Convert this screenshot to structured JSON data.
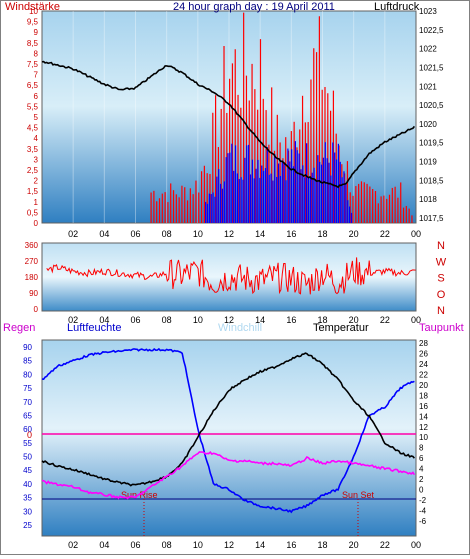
{
  "panels": {
    "top": {
      "left_title": "Windstärke",
      "center_title": "24 hour graph day : 19 April 2011",
      "right_title": "Luftdruck",
      "left_ticks": [
        "10",
        "9,5",
        "9",
        "8,5",
        "8",
        "7,5",
        "7",
        "6,5",
        "6",
        "5,5",
        "5",
        "4,5",
        "4",
        "3,5",
        "3",
        "2,5",
        "2",
        "1,5",
        "1",
        "0,5",
        "0"
      ],
      "right_ticks": [
        "1023",
        "1022,5",
        "1022",
        "1021,5",
        "1021",
        "1020,5",
        "1020",
        "1019,5",
        "1019",
        "1018,5",
        "1018",
        "1017,5"
      ],
      "x_ticks": [
        "02",
        "04",
        "06",
        "08",
        "10",
        "12",
        "14",
        "16",
        "18",
        "20",
        "22",
        "00"
      ]
    },
    "middle": {
      "left_ticks": [
        "360",
        "270",
        "180",
        "90",
        "0"
      ],
      "right_ticks": [
        "N",
        "W",
        "S",
        "O",
        "N"
      ],
      "x_ticks": [
        "02",
        "04",
        "06",
        "08",
        "10",
        "12",
        "14",
        "16",
        "18",
        "20",
        "22",
        "00"
      ]
    },
    "bottom": {
      "legend": {
        "regen": "Regen",
        "luftfeuchte": "Luftfeuchte",
        "windchill": "Windchill",
        "temperatur": "Temperatur",
        "taupunkt": "Taupunkt"
      },
      "left_ticks": [
        "90",
        "85",
        "80",
        "75",
        "70",
        "65",
        "60",
        "55",
        "50",
        "45",
        "40",
        "35",
        "30",
        "25"
      ],
      "rain_tick": "0",
      "right_ticks": [
        "28",
        "26",
        "24",
        "22",
        "20",
        "18",
        "16",
        "14",
        "12",
        "10",
        "8",
        "6",
        "4",
        "2",
        "0",
        "-2",
        "-4",
        "-6"
      ],
      "x_ticks": [
        "02",
        "04",
        "06",
        "08",
        "10",
        "12",
        "14",
        "16",
        "18",
        "20",
        "22",
        "00"
      ],
      "sun_rise": "Sun Rise",
      "sun_set": "Sun Set"
    }
  },
  "colors": {
    "wind_speed": "#ff0000",
    "wind_gust": "#0000ff",
    "pressure": "#000000",
    "humidity": "#0000ff",
    "temperature": "#000000",
    "dewpoint": "#ff00ff",
    "windchill": "#add8e6",
    "rain_line": "#ff00aa"
  },
  "chart_data": [
    {
      "type": "line",
      "title": "24 hour graph day : 19 April 2011",
      "xlabel": "",
      "ylabel_left": "Windstärke",
      "ylabel_right": "Luftdruck",
      "x_range_hours": [
        0,
        24
      ],
      "ylim_left": [
        0,
        10
      ],
      "ylim_right": [
        1017.5,
        1023
      ],
      "series": [
        {
          "name": "Luftdruck",
          "axis": "right",
          "x": [
            0,
            1,
            2,
            3,
            4,
            5,
            6,
            7,
            8,
            9,
            10,
            11,
            12,
            13,
            14,
            15,
            16,
            17,
            18,
            19,
            19.5,
            20,
            21,
            22,
            23,
            24
          ],
          "values": [
            1021.7,
            1021.6,
            1021.5,
            1021.3,
            1021.1,
            1020.95,
            1021.0,
            1021.3,
            1021.6,
            1021.4,
            1021.1,
            1020.9,
            1020.6,
            1020.1,
            1019.6,
            1019.2,
            1018.9,
            1018.7,
            1018.55,
            1018.45,
            1018.5,
            1018.8,
            1019.3,
            1019.6,
            1019.8,
            1020.0
          ]
        },
        {
          "name": "Windstärke",
          "axis": "left",
          "x": [
            0,
            5,
            6,
            7,
            8,
            9,
            10,
            11,
            12,
            13,
            14,
            15,
            16,
            17,
            18,
            19,
            20,
            21,
            22,
            23,
            24
          ],
          "values": [
            0,
            0,
            0,
            2,
            2,
            2,
            2.5,
            5.5,
            10,
            10,
            10,
            5.5,
            5,
            10,
            10,
            5.5,
            2,
            2,
            2,
            2,
            0
          ]
        },
        {
          "name": "Windstärke (mean)",
          "axis": "left",
          "x": [
            10,
            11,
            12,
            13,
            14,
            15,
            16,
            17,
            18,
            19,
            20
          ],
          "values": [
            0,
            2,
            4,
            4,
            4,
            4,
            4,
            4,
            4,
            4,
            0
          ]
        }
      ]
    },
    {
      "type": "line",
      "xlabel": "",
      "ylabel_left": "",
      "x_range_hours": [
        0,
        24
      ],
      "ylim": [
        0,
        360
      ],
      "series": [
        {
          "name": "Windrichtung",
          "x": [
            0,
            1,
            2,
            3,
            4,
            5,
            6,
            7,
            8,
            9,
            10,
            11,
            12,
            13,
            14,
            15,
            16,
            17,
            18,
            19,
            20,
            21,
            22,
            23,
            24
          ],
          "values": [
            210,
            230,
            210,
            200,
            210,
            200,
            190,
            180,
            200,
            190,
            210,
            150,
            180,
            170,
            160,
            180,
            170,
            140,
            200,
            150,
            210,
            200,
            210,
            200,
            210
          ]
        }
      ]
    },
    {
      "type": "line",
      "xlabel": "",
      "x_range_hours": [
        0,
        24
      ],
      "ylim_left": [
        25,
        90
      ],
      "ylim_right": [
        -6,
        28
      ],
      "series": [
        {
          "name": "Luftfeuchte",
          "axis": "left",
          "x": [
            0,
            1,
            2,
            3,
            4,
            5,
            6,
            7,
            8,
            9,
            10,
            11,
            12,
            13,
            14,
            15,
            16,
            17,
            18,
            19,
            20,
            21,
            22,
            23,
            24
          ],
          "values": [
            78,
            83,
            85,
            87,
            88,
            88.5,
            89,
            89,
            89,
            88,
            60,
            40,
            38,
            34,
            32,
            31,
            30,
            32,
            36,
            38,
            50,
            65,
            68,
            75,
            78
          ]
        },
        {
          "name": "Temperatur",
          "axis": "right",
          "x": [
            0,
            1,
            2,
            3,
            4,
            5,
            6,
            7,
            8,
            9,
            10,
            11,
            12,
            13,
            14,
            15,
            16,
            17,
            18,
            19,
            20,
            21,
            22,
            23,
            24
          ],
          "values": [
            5.5,
            4.5,
            3.8,
            3,
            2,
            1.3,
            0.8,
            1.5,
            2.5,
            5,
            10,
            15,
            19,
            21,
            22.5,
            23.5,
            25,
            26,
            24,
            21,
            17,
            14,
            9,
            7,
            6
          ]
        },
        {
          "name": "Taupunkt",
          "axis": "right",
          "x": [
            0,
            1,
            2,
            3,
            4,
            5,
            6,
            7,
            8,
            9,
            10,
            11,
            12,
            13,
            14,
            15,
            16,
            17,
            18,
            19,
            20,
            21,
            22,
            23,
            24
          ],
          "values": [
            1.5,
            1,
            0.5,
            -0.5,
            -1,
            -1.5,
            -1.5,
            0.5,
            2.5,
            4.5,
            7,
            7,
            5.5,
            5.5,
            5,
            5,
            4.5,
            6,
            5,
            5.5,
            5,
            4.5,
            4,
            3.5,
            3
          ]
        },
        {
          "name": "Regen",
          "axis": "right",
          "x": [
            0,
            24
          ],
          "values": [
            12,
            12
          ]
        }
      ]
    }
  ]
}
